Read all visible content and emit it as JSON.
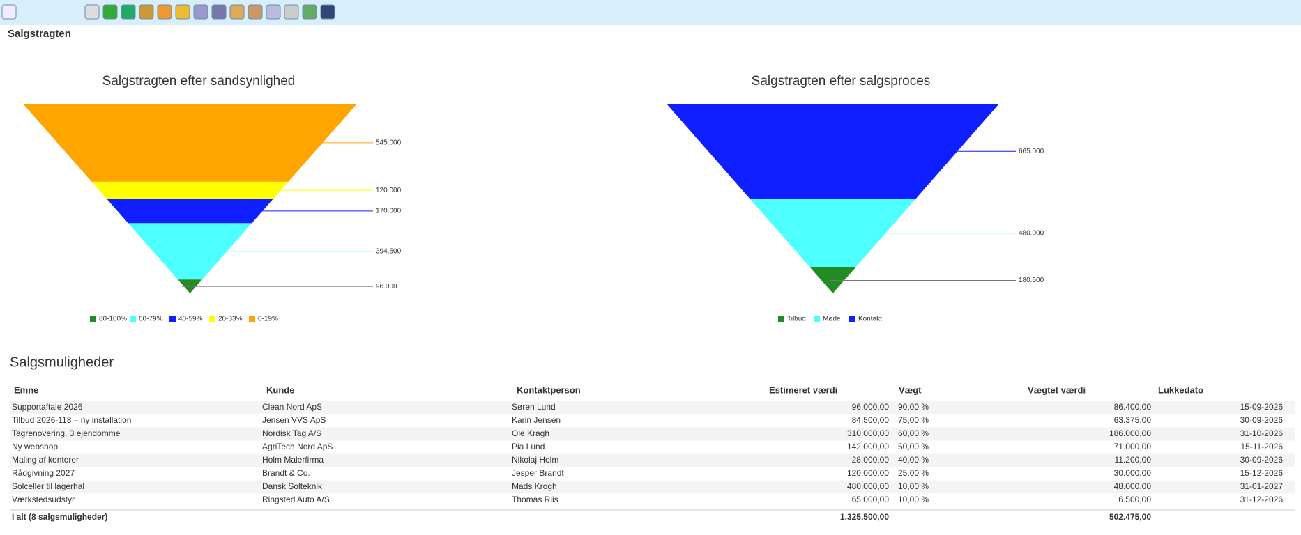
{
  "header": {
    "title": "Salgstragten"
  },
  "chart_data": [
    {
      "type": "funnel",
      "title": "Salgstragten efter sandsynlighed",
      "categories": [
        "80-100%",
        "60-79%",
        "40-59%",
        "20-33%",
        "0-19%"
      ],
      "values": [
        96000,
        394500,
        170000,
        120000,
        545000
      ],
      "value_labels": [
        "96.000",
        "394.500",
        "170.000",
        "120.000",
        "545.000"
      ],
      "colors": [
        "#228b22",
        "#4dffff",
        "#0f1fff",
        "#ffff00",
        "#ffa500"
      ],
      "legend": "bottom"
    },
    {
      "type": "funnel",
      "title": "Salgstragten efter salgsproces",
      "categories": [
        "Tilbud",
        "Møde",
        "Kontakt"
      ],
      "values": [
        180500,
        480000,
        665000
      ],
      "value_labels": [
        "180.500",
        "480.000",
        "665.000"
      ],
      "colors": [
        "#228b22",
        "#4dffff",
        "#0f1fff"
      ],
      "legend": "bottom"
    }
  ],
  "table": {
    "title": "Salgsmuligheder",
    "columns": [
      "Emne",
      "Kunde",
      "Kontaktperson",
      "Estimeret værdi",
      "Vægt",
      "Vægtet værdi",
      "Lukkedato"
    ],
    "rows": [
      [
        "Supportaftale 2026",
        "Clean Nord ApS",
        "Søren Lund",
        "96.000,00",
        "90,00 %",
        "86.400,00",
        "15-09-2026"
      ],
      [
        "Tilbud 2026-118 – ny installation",
        "Jensen VVS ApS",
        "Karin Jensen",
        "84.500,00",
        "75,00 %",
        "63.375,00",
        "30-09-2026"
      ],
      [
        "Tagrenovering, 3 ejendomme",
        "Nordisk Tag A/S",
        "Ole Kragh",
        "310.000,00",
        "60,00 %",
        "186.000,00",
        "31-10-2026"
      ],
      [
        "Ny webshop",
        "AgriTech Nord ApS",
        "Pia Lund",
        "142.000,00",
        "50,00 %",
        "71.000,00",
        "15-11-2026"
      ],
      [
        "Maling af kontorer",
        "Holm Malerfirma",
        "Nikolaj Holm",
        "28.000,00",
        "40,00 %",
        "11.200,00",
        "30-09-2026"
      ],
      [
        "Rådgivning 2027",
        "Brandt & Co.",
        "Jesper Brandt",
        "120.000,00",
        "25,00 %",
        "30.000,00",
        "15-12-2026"
      ],
      [
        "Solceller til lagerhal",
        "Dansk Solteknik",
        "Mads Krogh",
        "480.000,00",
        "10,00 %",
        "48.000,00",
        "31-01-2027"
      ],
      [
        "Værkstedsudstyr",
        "Ringsted Auto A/S",
        "Thomas Riis",
        "65.000,00",
        "10,00 %",
        "6.500,00",
        "31-12-2026"
      ]
    ],
    "total": {
      "label": "I alt (8 salgsmuligheder)",
      "estimated": "1.325.500,00",
      "weighted": "502.475,00"
    }
  }
}
